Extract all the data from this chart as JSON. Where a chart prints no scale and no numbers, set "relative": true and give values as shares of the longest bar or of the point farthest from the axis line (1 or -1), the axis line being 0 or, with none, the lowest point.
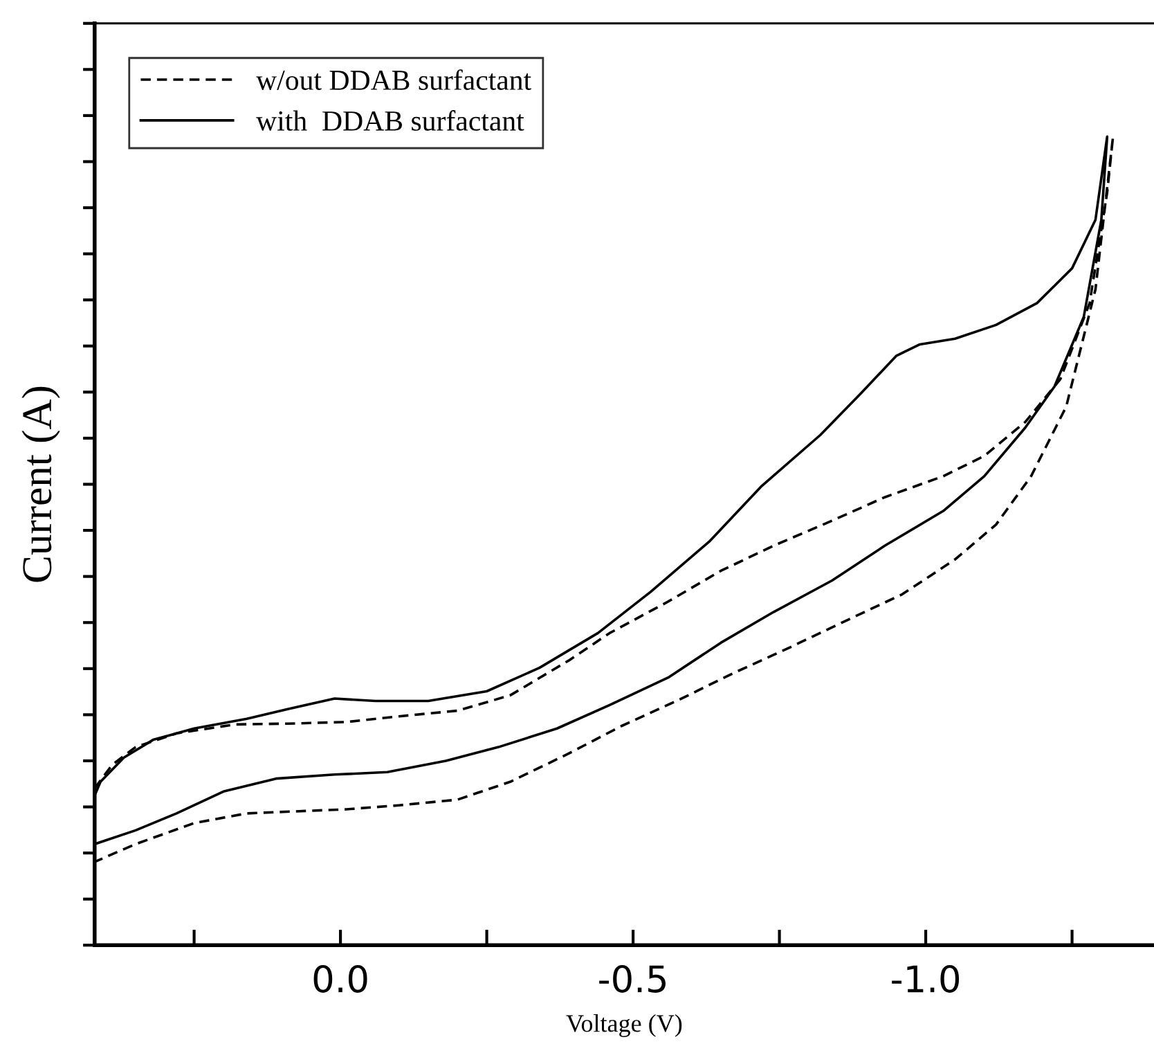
{
  "chart_data": {
    "type": "line",
    "xlabel": "Voltage (V)",
    "ylabel": "Current (A)",
    "relative": true,
    "xlim": [
      0.42,
      -1.39
    ],
    "xticks": [
      {
        "value": 0.25,
        "label": null
      },
      {
        "value": 0,
        "label": "0.0"
      },
      {
        "value": -0.25,
        "label": null
      },
      -0.5,
      {
        "value": -0.75,
        "label": null
      },
      {
        "value": -1,
        "label": "-1.0"
      },
      {
        "value": -1.25,
        "label": null
      }
    ],
    "grid": false,
    "legend": "top left",
    "marker": "none",
    "series": [
      {
        "name": "w/out DDAB surfactant",
        "color": "#000000",
        "line_style": "dashed",
        "x": [
          0.42,
          0.39,
          0.35,
          0.28,
          0.18,
          0.09,
          -0.01,
          -0.1,
          -0.2,
          -0.29,
          -0.39,
          -0.46,
          -0.56,
          -0.65,
          -0.74,
          -0.84,
          -0.93,
          -1.03,
          -1.1,
          -1.17,
          -1.23,
          -1.28,
          -1.31,
          -1.32,
          -1.29,
          -1.24,
          -1.18,
          -1.12,
          -1.05,
          -0.96,
          -0.86,
          -0.77,
          -0.67,
          -0.58,
          -0.48,
          -0.39,
          -0.29,
          -0.2,
          -0.1,
          -0.01,
          0.06,
          0.16,
          0.25,
          0.35,
          0.42
        ],
        "values": [
          0.194,
          0.223,
          0.245,
          0.262,
          0.273,
          0.274,
          0.276,
          0.283,
          0.29,
          0.309,
          0.352,
          0.386,
          0.425,
          0.463,
          0.494,
          0.525,
          0.554,
          0.58,
          0.605,
          0.647,
          0.7,
          0.794,
          0.931,
          1.0,
          0.811,
          0.666,
          0.58,
          0.52,
          0.477,
          0.434,
          0.4,
          0.369,
          0.336,
          0.304,
          0.271,
          0.237,
          0.202,
          0.18,
          0.173,
          0.168,
          0.166,
          0.163,
          0.151,
          0.125,
          0.103
        ]
      },
      {
        "name": "with  DDAB surfactant",
        "color": "#000000",
        "line_style": "solid",
        "x": [
          0.42,
          0.41,
          0.37,
          0.32,
          0.25,
          0.16,
          0.09,
          0.01,
          -0.06,
          -0.15,
          -0.25,
          -0.34,
          -0.44,
          -0.53,
          -0.63,
          -0.72,
          -0.82,
          -0.89,
          -0.95,
          -0.99,
          -1.05,
          -1.12,
          -1.19,
          -1.25,
          -1.29,
          -1.31,
          -1.3,
          -1.27,
          -1.22,
          -1.17,
          -1.1,
          -1.03,
          -0.93,
          -0.84,
          -0.74,
          -0.65,
          -0.56,
          -0.46,
          -0.37,
          -0.27,
          -0.18,
          -0.08,
          0.01,
          0.11,
          0.2,
          0.28,
          0.35,
          0.42
        ],
        "values": [
          0.185,
          0.202,
          0.232,
          0.254,
          0.268,
          0.28,
          0.292,
          0.305,
          0.302,
          0.302,
          0.314,
          0.343,
          0.386,
          0.437,
          0.499,
          0.568,
          0.631,
          0.683,
          0.729,
          0.743,
          0.75,
          0.767,
          0.794,
          0.837,
          0.897,
          1.0,
          0.897,
          0.777,
          0.691,
          0.64,
          0.58,
          0.537,
          0.494,
          0.451,
          0.412,
          0.374,
          0.331,
          0.297,
          0.268,
          0.245,
          0.228,
          0.214,
          0.211,
          0.206,
          0.19,
          0.163,
          0.142,
          0.125
        ]
      }
    ]
  }
}
